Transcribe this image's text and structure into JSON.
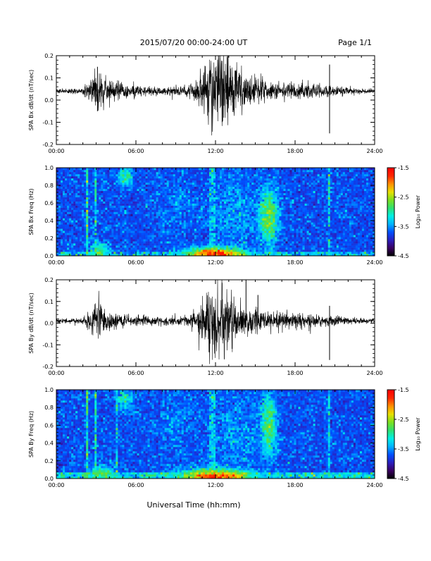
{
  "header": {
    "title": "2015/07/20  00:00-24:00 UT",
    "page": "Page 1/1"
  },
  "footer": {
    "xlabel": "Universal Time (hh:mm)"
  },
  "colorbar": {
    "label": "Log₁₀ Power",
    "ticks": [
      "-1.5",
      "-2.5",
      "-3.5",
      "-4.5"
    ],
    "range": [
      -4.5,
      -1.5
    ],
    "colormap": [
      "#000000",
      "#3a0060",
      "#2b1fbf",
      "#0050ff",
      "#00b4ff",
      "#00f0e6",
      "#30e070",
      "#7ce020",
      "#e8e000",
      "#ff9000",
      "#ff2800",
      "#ff0000"
    ]
  },
  "chart_data": [
    {
      "type": "line",
      "title": "",
      "ylabel": "SPA Bx dB/dt (nT/sec)",
      "xlim": [
        0,
        24
      ],
      "ylim": [
        -0.2,
        0.2
      ],
      "x_ticks": [
        "00:00",
        "06:00",
        "12:00",
        "18:00",
        "24:00"
      ],
      "y_ticks": [
        "0.2",
        "0.1",
        "0.0",
        "-0.1",
        "-0.2"
      ],
      "baseline": 0.04,
      "envelope": [
        {
          "t": 0.0,
          "amp": 0.012
        },
        {
          "t": 2.0,
          "amp": 0.014
        },
        {
          "t": 2.5,
          "amp": 0.05
        },
        {
          "t": 3.2,
          "amp": 0.11
        },
        {
          "t": 3.8,
          "amp": 0.06
        },
        {
          "t": 4.5,
          "amp": 0.045
        },
        {
          "t": 6.0,
          "amp": 0.03
        },
        {
          "t": 8.0,
          "amp": 0.02
        },
        {
          "t": 10.0,
          "amp": 0.03
        },
        {
          "t": 11.0,
          "amp": 0.09
        },
        {
          "t": 11.6,
          "amp": 0.2
        },
        {
          "t": 12.5,
          "amp": 0.2
        },
        {
          "t": 13.5,
          "amp": 0.13
        },
        {
          "t": 14.5,
          "amp": 0.08
        },
        {
          "t": 16.0,
          "amp": 0.05
        },
        {
          "t": 18.0,
          "amp": 0.04
        },
        {
          "t": 20.0,
          "amp": 0.035
        },
        {
          "t": 22.0,
          "amp": 0.018
        },
        {
          "t": 24.0,
          "amp": 0.012
        }
      ],
      "spikes": [
        {
          "t": 20.6,
          "min": -0.15,
          "max": 0.16
        },
        {
          "t": 3.1,
          "min": -0.05,
          "max": 0.15
        }
      ]
    },
    {
      "type": "heatmap",
      "title": "",
      "ylabel": "SPA Bx Freq (Hz)",
      "xlim": [
        0,
        24
      ],
      "ylim": [
        0,
        1.0
      ],
      "x_ticks": [
        "00:00",
        "06:00",
        "12:00",
        "18:00",
        "24:00"
      ],
      "y_ticks": [
        "1.0",
        "0.8",
        "0.6",
        "0.4",
        "0.2",
        "0.0"
      ],
      "value_range": [
        -4.5,
        -1.5
      ],
      "background_level": -4.0,
      "features": [
        {
          "kind": "low_band",
          "t0": 0,
          "t1": 24,
          "f_max": 0.05,
          "level": -3.3
        },
        {
          "kind": "blob",
          "t": 12.0,
          "f": 0.02,
          "st": 1.8,
          "sf": 0.06,
          "level": -1.7
        },
        {
          "kind": "blob",
          "t": 3.2,
          "f": 0.05,
          "st": 0.6,
          "sf": 0.08,
          "level": -2.8
        },
        {
          "kind": "column",
          "t": 2.3,
          "width": 0.25,
          "level": -3.1
        },
        {
          "kind": "column",
          "t": 3.0,
          "width": 0.15,
          "level": -3.2
        },
        {
          "kind": "column",
          "t": 11.8,
          "width": 0.5,
          "level": -3.4
        },
        {
          "kind": "column",
          "t": 20.6,
          "width": 0.2,
          "level": -3.3
        },
        {
          "kind": "blob",
          "t": 5.2,
          "f": 0.9,
          "st": 0.45,
          "sf": 0.1,
          "level": -3.0
        },
        {
          "kind": "blob",
          "t": 16.0,
          "f": 0.45,
          "st": 0.6,
          "sf": 0.25,
          "level": -2.6
        },
        {
          "kind": "blob",
          "t": 13.5,
          "f": 0.5,
          "st": 1.8,
          "sf": 0.4,
          "level": -3.5
        },
        {
          "kind": "blob",
          "t": 9.0,
          "f": 0.6,
          "st": 1.2,
          "sf": 0.3,
          "level": -3.6
        }
      ]
    },
    {
      "type": "line",
      "title": "",
      "ylabel": "SPA By dB/dt (nT/sec)",
      "xlim": [
        0,
        24
      ],
      "ylim": [
        -0.2,
        0.2
      ],
      "x_ticks": [
        "00:00",
        "06:00",
        "12:00",
        "18:00",
        "24:00"
      ],
      "y_ticks": [
        "0.2",
        "0.1",
        "0.0",
        "-0.1",
        "-0.2"
      ],
      "baseline": 0.01,
      "envelope": [
        {
          "t": 0.0,
          "amp": 0.012
        },
        {
          "t": 2.0,
          "amp": 0.014
        },
        {
          "t": 2.5,
          "amp": 0.05
        },
        {
          "t": 3.2,
          "amp": 0.1
        },
        {
          "t": 3.8,
          "amp": 0.06
        },
        {
          "t": 4.5,
          "amp": 0.04
        },
        {
          "t": 6.0,
          "amp": 0.03
        },
        {
          "t": 8.0,
          "amp": 0.02
        },
        {
          "t": 10.0,
          "amp": 0.03
        },
        {
          "t": 11.0,
          "amp": 0.08
        },
        {
          "t": 11.6,
          "amp": 0.2
        },
        {
          "t": 12.5,
          "amp": 0.2
        },
        {
          "t": 13.5,
          "amp": 0.1
        },
        {
          "t": 14.5,
          "amp": 0.07
        },
        {
          "t": 16.0,
          "amp": 0.05
        },
        {
          "t": 18.0,
          "amp": 0.04
        },
        {
          "t": 20.0,
          "amp": 0.035
        },
        {
          "t": 22.0,
          "amp": 0.018
        },
        {
          "t": 24.0,
          "amp": 0.012
        }
      ],
      "spikes": [
        {
          "t": 20.6,
          "min": -0.17,
          "max": 0.08
        },
        {
          "t": 14.3,
          "min": -0.02,
          "max": 0.2
        },
        {
          "t": 15.2,
          "min": -0.01,
          "max": 0.13
        }
      ]
    },
    {
      "type": "heatmap",
      "title": "",
      "ylabel": "SPA By Freq (Hz)",
      "xlim": [
        0,
        24
      ],
      "ylim": [
        0,
        1.0
      ],
      "x_ticks": [
        "00:00",
        "06:00",
        "12:00",
        "18:00",
        "24:00"
      ],
      "y_ticks": [
        "1.0",
        "0.8",
        "0.6",
        "0.4",
        "0.2",
        "0.0"
      ],
      "value_range": [
        -4.5,
        -1.5
      ],
      "background_level": -4.0,
      "features": [
        {
          "kind": "low_band",
          "t0": 0,
          "t1": 24,
          "f_max": 0.06,
          "level": -3.2
        },
        {
          "kind": "blob",
          "t": 12.0,
          "f": 0.02,
          "st": 2.2,
          "sf": 0.07,
          "level": -1.8
        },
        {
          "kind": "blob",
          "t": 3.5,
          "f": 0.04,
          "st": 0.8,
          "sf": 0.08,
          "level": -2.7
        },
        {
          "kind": "column",
          "t": 2.3,
          "width": 0.25,
          "level": -3.0
        },
        {
          "kind": "column",
          "t": 3.0,
          "width": 0.15,
          "level": -3.1
        },
        {
          "kind": "column",
          "t": 4.6,
          "width": 0.15,
          "level": -3.3
        },
        {
          "kind": "column",
          "t": 11.8,
          "width": 0.5,
          "level": -3.4
        },
        {
          "kind": "column",
          "t": 20.6,
          "width": 0.2,
          "level": -3.3
        },
        {
          "kind": "blob",
          "t": 5.2,
          "f": 0.9,
          "st": 0.45,
          "sf": 0.1,
          "level": -3.0
        },
        {
          "kind": "blob",
          "t": 16.0,
          "f": 0.6,
          "st": 0.5,
          "sf": 0.3,
          "level": -2.8
        },
        {
          "kind": "blob",
          "t": 13.5,
          "f": 0.5,
          "st": 1.8,
          "sf": 0.4,
          "level": -3.5
        },
        {
          "kind": "blob",
          "t": 9.0,
          "f": 0.6,
          "st": 1.2,
          "sf": 0.3,
          "level": -3.6
        }
      ]
    }
  ]
}
